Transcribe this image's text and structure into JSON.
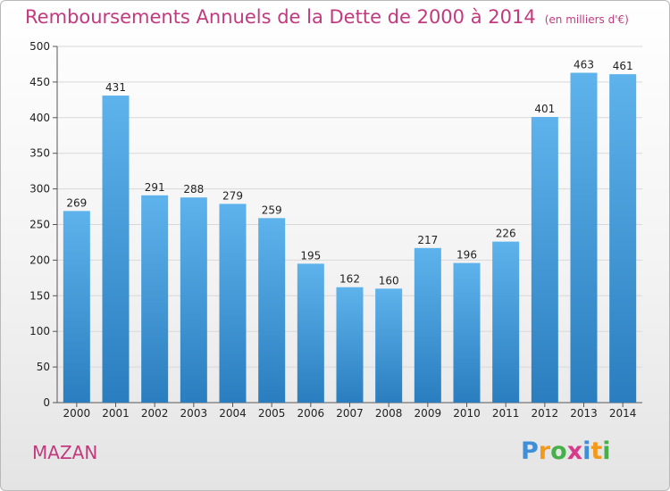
{
  "title": "Remboursements Annuels de la Dette de 2000 à 2014",
  "unit": "(en milliers d'€)",
  "place": "MAZAN",
  "logo": {
    "letters": [
      "P",
      "r",
      "o",
      "x",
      "i",
      "t",
      "i"
    ],
    "colors": [
      "#3f8fd8",
      "#f39a1c",
      "#48b04a",
      "#d83a8a",
      "#3f8fd8",
      "#f39a1c",
      "#48b04a"
    ]
  },
  "colors": {
    "bar_top": "#5eb3ec",
    "bar_bottom": "#2a7ebf",
    "accent": "#c23a7e"
  },
  "chart_data": {
    "type": "bar",
    "categories": [
      "2000",
      "2001",
      "2002",
      "2003",
      "2004",
      "2005",
      "2006",
      "2007",
      "2008",
      "2009",
      "2010",
      "2011",
      "2012",
      "2013",
      "2014"
    ],
    "values": [
      269,
      431,
      291,
      288,
      279,
      259,
      195,
      162,
      160,
      217,
      196,
      226,
      401,
      463,
      461
    ],
    "data_labels": [
      "269",
      "431",
      "291",
      "288",
      "279",
      "259",
      "195",
      "162",
      "160",
      "217",
      "196",
      "226",
      "401",
      "463",
      "461"
    ],
    "ylim": [
      0,
      500
    ],
    "yticks": [
      "0",
      "50",
      "100",
      "150",
      "200",
      "250",
      "300",
      "350",
      "400",
      "450",
      "500"
    ],
    "grid": true,
    "xlabel": "",
    "ylabel": ""
  }
}
